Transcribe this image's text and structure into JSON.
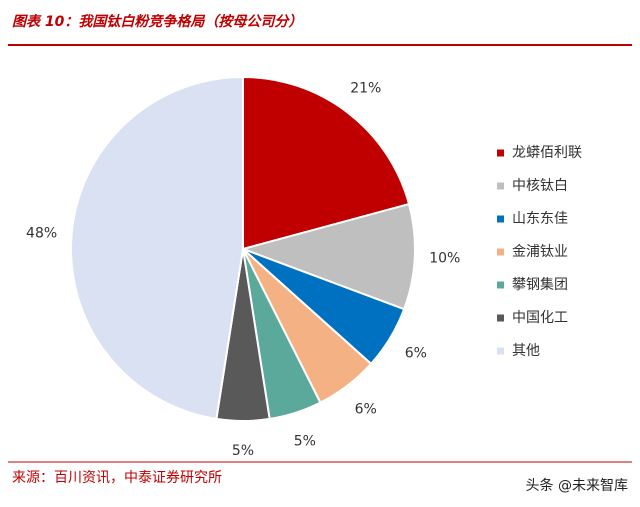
{
  "chart_data": {
    "type": "pie",
    "title": "图表 10：我国钛白粉竞争格局（按母公司分）",
    "categories": [
      "龙蟒佰利联",
      "中核钛白",
      "山东东佳",
      "金浦钛业",
      "攀钢集团",
      "中国化工",
      "其他"
    ],
    "values": [
      21,
      10,
      6,
      6,
      5,
      5,
      48
    ],
    "value_labels": [
      "21%",
      "10%",
      "6%",
      "6%",
      "5%",
      "5%",
      "48%"
    ],
    "colors": [
      "#C00000",
      "#BFBFBF",
      "#0070C0",
      "#F4B183",
      "#5BA99B",
      "#595959",
      "#D9E1F2"
    ],
    "legend": "right",
    "source": "来源：百川资讯，中泰证券研究所",
    "watermark": "头条 @未来智库"
  }
}
